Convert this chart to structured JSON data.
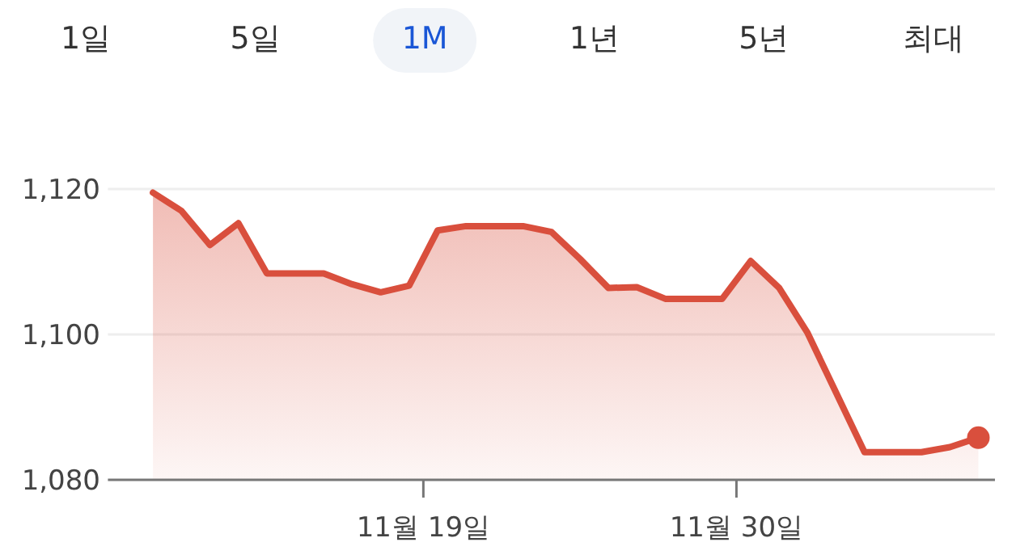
{
  "chart_data": {
    "type": "area",
    "color": "#d94f3d",
    "annotations": [
      "1일",
      "5일",
      "1M",
      "1년",
      "5년",
      "최대"
    ],
    "x": [
      "--11-09T12:00",
      "--11-10T12:00",
      "--11-11T12:00",
      "--11-12T12:00",
      "--11-13T12:00",
      "--11-14T12:00",
      "--11-15T12:00",
      "--11-16T12:00",
      "--11-17T12:00",
      "--11-18T12:00",
      "--11-19T12:00",
      "--11-20T12:00",
      "--11-21T12:00",
      "--11-22T12:00",
      "--11-23T12:00",
      "--11-24T12:00",
      "--11-25T12:00",
      "--11-26T12:00",
      "--11-27T12:00",
      "--11-28T12:00",
      "--11-29T12:00",
      "--11-30T12:00",
      "--12-01T12:00",
      "--12-02T12:00",
      "--12-03T12:00",
      "--12-04T12:00",
      "--12-05T12:00",
      "--12-06T12:00",
      "--12-07T12:00",
      "--12-08T12:00"
    ],
    "values": [
      1119.5,
      1117.0,
      1112.3,
      1115.3,
      1108.4,
      1108.4,
      1108.4,
      1106.9,
      1105.8,
      1106.7,
      1114.3,
      1114.9,
      1114.9,
      1114.9,
      1114.1,
      1110.4,
      1106.4,
      1106.5,
      1104.9,
      1104.9,
      1104.9,
      1110.1,
      1106.4,
      1100.2,
      1092.0,
      1083.8,
      1083.8,
      1083.8,
      1084.5,
      1085.8
    ],
    "xlim": [
      "--11-07T22:00",
      "--12-09T02:00"
    ],
    "xticks": [
      {
        "value": "--11-19",
        "label": "11월 19일"
      },
      {
        "value": "--11-30",
        "label": "11월 30일"
      }
    ],
    "ylim": [
      1080,
      1120
    ],
    "yticks": [
      {
        "value": 1080,
        "label": "1,080"
      },
      {
        "value": 1100,
        "label": "1,100"
      },
      {
        "value": 1120,
        "label": "1,120"
      }
    ],
    "grid": "y"
  }
}
